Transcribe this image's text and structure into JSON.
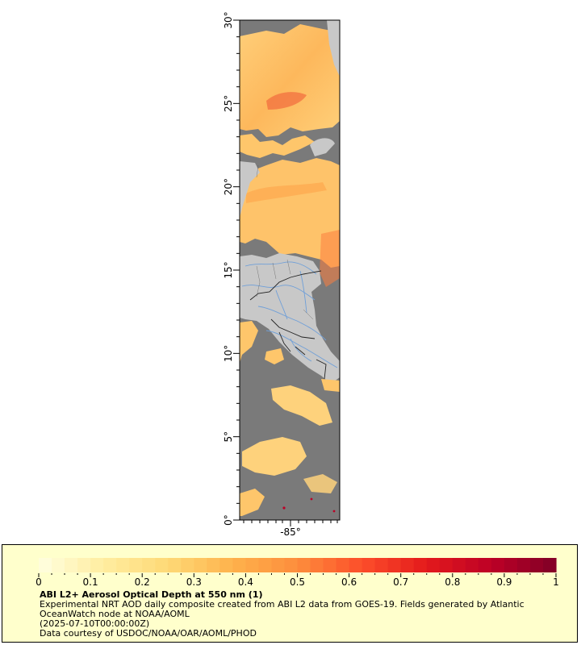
{
  "map": {
    "lat_labels": [
      "0°",
      "5°",
      "10°",
      "15°",
      "20°",
      "25°",
      "30°"
    ],
    "lon_label": "-85°",
    "lat_range": [
      0,
      30
    ],
    "colors": {
      "no_data": "#7a7a7a",
      "land": "#c8c8c8",
      "rivers": "#6f9fd8",
      "borders": "#222222"
    }
  },
  "legend": {
    "title": "ABI L2+ Aerosol Optical Depth at 550 nm (1)",
    "line1": "Experimental NRT AOD daily composite created from ABI L2 data from GOES-19. Fields generated by Atlantic OceanWatch node at NOAA/AOML",
    "line2": "(2025-07-10T00:00:00Z)",
    "line3": "Data courtesy of USDOC/NOAA/OAR/AOML/PHOD",
    "tick_labels": [
      "0",
      "0.1",
      "0.2",
      "0.3",
      "0.4",
      "0.5",
      "0.6",
      "0.7",
      "0.8",
      "0.9",
      "1"
    ],
    "range": [
      0,
      1
    ],
    "colors": [
      "#ffffe0",
      "#ffeda0",
      "#fed976",
      "#feb24c",
      "#fd8d3c",
      "#fc4e2a",
      "#e31a1c",
      "#bd0026",
      "#800026"
    ]
  }
}
